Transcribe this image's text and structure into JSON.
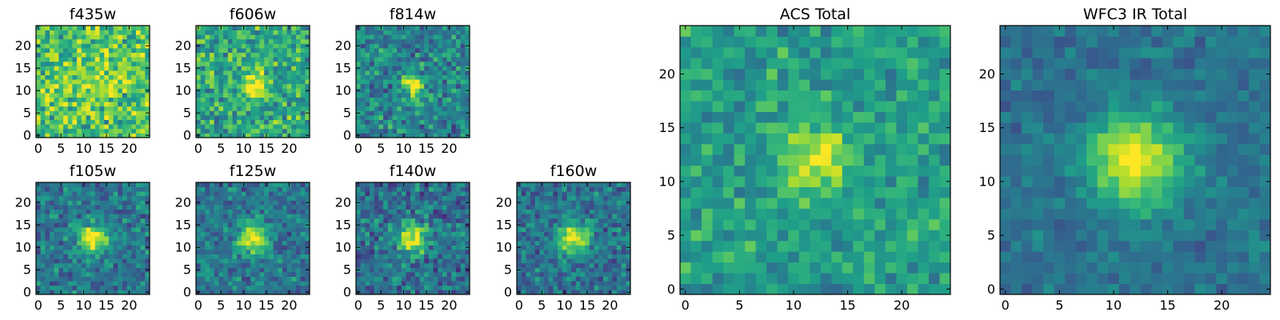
{
  "figure_title": "",
  "colormap": [
    "#440154",
    "#482878",
    "#3e4989",
    "#31688e",
    "#26828e",
    "#1f9e89",
    "#35b779",
    "#6ece58",
    "#b5de2b",
    "#fde725"
  ],
  "chart_data": [
    {
      "type": "heatmap",
      "title": "f435w",
      "size": 25,
      "xticks": [
        "0",
        "5",
        "10",
        "15",
        "20"
      ],
      "yticks": [
        "0",
        "5",
        "10",
        "15",
        "20"
      ],
      "xlim": [
        0,
        25
      ],
      "ylim": [
        0,
        25
      ],
      "grid": false,
      "source_center": [
        12,
        12
      ],
      "source_peak": 0.1,
      "source_sigma": 4,
      "background": 0.72,
      "noise": 0.35,
      "seed": 11
    },
    {
      "type": "heatmap",
      "title": "f606w",
      "size": 25,
      "xticks": [
        "0",
        "5",
        "10",
        "15",
        "20"
      ],
      "yticks": [
        "0",
        "5",
        "10",
        "15",
        "20"
      ],
      "xlim": [
        0,
        25
      ],
      "ylim": [
        0,
        25
      ],
      "grid": false,
      "source_center": [
        12,
        11
      ],
      "source_peak": 0.4,
      "source_sigma": 2.0,
      "background": 0.6,
      "noise": 0.32,
      "seed": 23
    },
    {
      "type": "heatmap",
      "title": "f814w",
      "size": 25,
      "xticks": [
        "0",
        "5",
        "10",
        "15",
        "20"
      ],
      "yticks": [
        "0",
        "5",
        "10",
        "15",
        "20"
      ],
      "xlim": [
        0,
        25
      ],
      "ylim": [
        0,
        25
      ],
      "grid": false,
      "source_center": [
        12,
        11
      ],
      "source_peak": 0.55,
      "source_sigma": 1.8,
      "background": 0.45,
      "noise": 0.3,
      "seed": 37
    },
    {
      "type": "heatmap",
      "title": "f105w",
      "size": 25,
      "xticks": [
        "0",
        "5",
        "10",
        "15",
        "20"
      ],
      "yticks": [
        "0",
        "5",
        "10",
        "15",
        "20"
      ],
      "xlim": [
        0,
        25
      ],
      "ylim": [
        0,
        25
      ],
      "grid": false,
      "source_center": [
        12,
        12
      ],
      "source_peak": 0.6,
      "source_sigma": 2.2,
      "background": 0.4,
      "noise": 0.25,
      "seed": 41
    },
    {
      "type": "heatmap",
      "title": "f125w",
      "size": 25,
      "xticks": [
        "0",
        "5",
        "10",
        "15",
        "20"
      ],
      "yticks": [
        "0",
        "5",
        "10",
        "15",
        "20"
      ],
      "xlim": [
        0,
        25
      ],
      "ylim": [
        0,
        25
      ],
      "grid": false,
      "source_center": [
        12,
        12
      ],
      "source_peak": 0.6,
      "source_sigma": 2.3,
      "background": 0.4,
      "noise": 0.25,
      "seed": 53
    },
    {
      "type": "heatmap",
      "title": "f140w",
      "size": 25,
      "xticks": [
        "0",
        "5",
        "10",
        "15",
        "20"
      ],
      "yticks": [
        "0",
        "5",
        "10",
        "15",
        "20"
      ],
      "xlim": [
        0,
        25
      ],
      "ylim": [
        0,
        25
      ],
      "grid": false,
      "source_center": [
        12,
        12
      ],
      "source_peak": 0.6,
      "source_sigma": 2.3,
      "background": 0.38,
      "noise": 0.27,
      "seed": 67
    },
    {
      "type": "heatmap",
      "title": "f160w",
      "size": 25,
      "xticks": [
        "0",
        "5",
        "10",
        "15",
        "20"
      ],
      "yticks": [
        "0",
        "5",
        "10",
        "15",
        "20"
      ],
      "xlim": [
        0,
        25
      ],
      "ylim": [
        0,
        25
      ],
      "grid": false,
      "source_center": [
        12,
        12
      ],
      "source_peak": 0.62,
      "source_sigma": 2.4,
      "background": 0.38,
      "noise": 0.25,
      "seed": 79
    },
    {
      "type": "heatmap",
      "title": "ACS Total",
      "size": 25,
      "xticks": [
        "0",
        "5",
        "10",
        "15",
        "20"
      ],
      "yticks": [
        "0",
        "5",
        "10",
        "15",
        "20"
      ],
      "xlim": [
        0,
        25
      ],
      "ylim": [
        0,
        25
      ],
      "grid": false,
      "source_center": [
        12,
        12
      ],
      "source_peak": 0.4,
      "source_sigma": 2.2,
      "background": 0.55,
      "noise": 0.22,
      "seed": 97
    },
    {
      "type": "heatmap",
      "title": "WFC3 IR Total",
      "size": 25,
      "xticks": [
        "0",
        "5",
        "10",
        "15",
        "20"
      ],
      "yticks": [
        "0",
        "5",
        "10",
        "15",
        "20"
      ],
      "xlim": [
        0,
        25
      ],
      "ylim": [
        0,
        25
      ],
      "grid": false,
      "source_center": [
        12,
        12
      ],
      "source_peak": 0.62,
      "source_sigma": 3.0,
      "background": 0.38,
      "noise": 0.14,
      "seed": 109
    }
  ]
}
